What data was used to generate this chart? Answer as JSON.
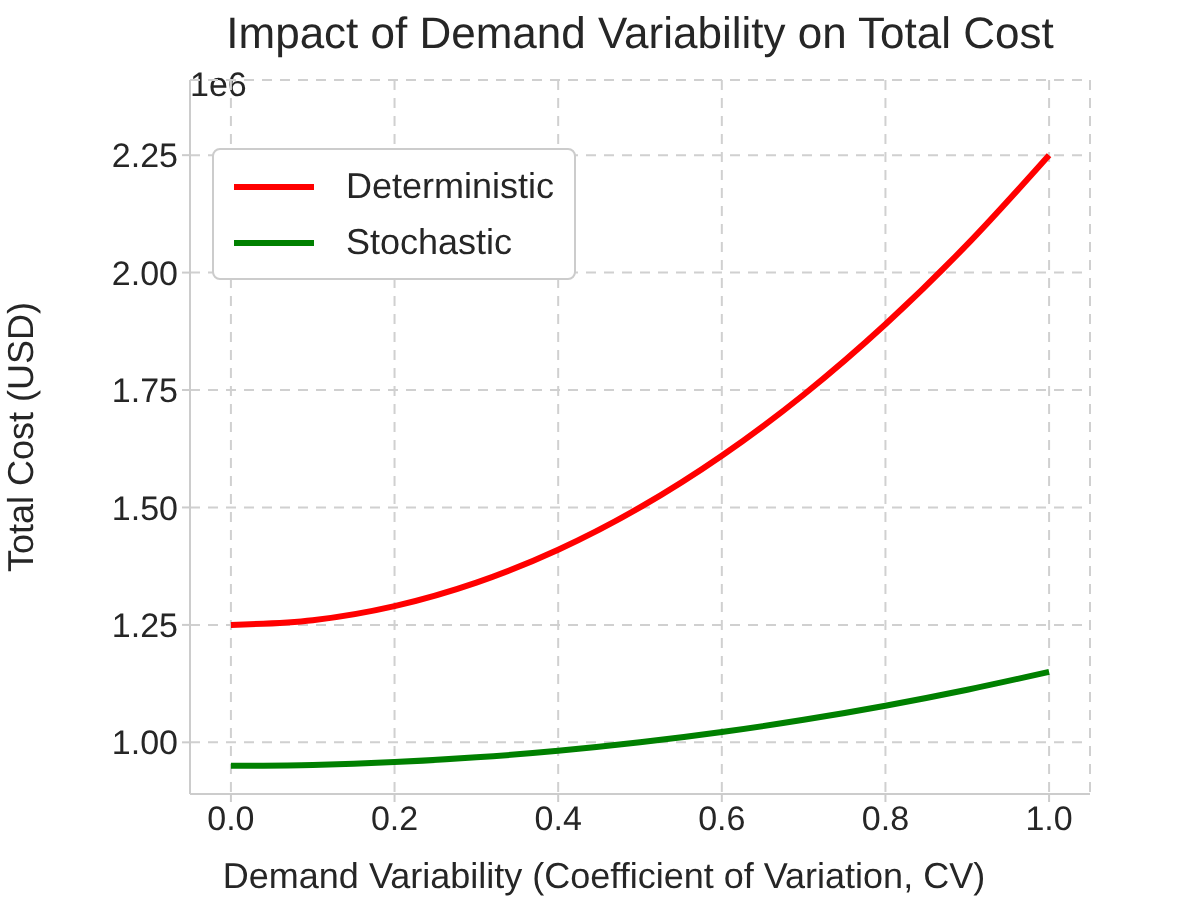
{
  "chart_data": {
    "type": "line",
    "title": "Impact of Demand Variability on Total Cost",
    "xlabel": "Demand Variability (Coefficient of Variation, CV)",
    "ylabel": "Total Cost (USD)",
    "annotations": [
      "1e6"
    ],
    "x": [
      0,
      0.1,
      0.2,
      0.3,
      0.4,
      0.5,
      0.6,
      0.7,
      0.8,
      0.9,
      1.0
    ],
    "series": [
      {
        "name": "Deterministic",
        "color": "#ff0000",
        "values": [
          1.25,
          1.26,
          1.29,
          1.34,
          1.41,
          1.5,
          1.61,
          1.74,
          1.89,
          2.06,
          2.25
        ]
      },
      {
        "name": "Stochastic",
        "color": "#008000",
        "values": [
          0.95,
          0.952,
          0.958,
          0.968,
          0.982,
          1.0,
          1.022,
          1.048,
          1.078,
          1.112,
          1.15
        ]
      }
    ],
    "xlim": [
      -0.05,
      1.05
    ],
    "xticks": [
      {
        "value": 0,
        "label": "0.0"
      },
      {
        "value": 0.2,
        "label": "0.2"
      },
      {
        "value": 0.4,
        "label": "0.4"
      },
      {
        "value": 0.6,
        "label": "0.6"
      },
      {
        "value": 0.8,
        "label": "0.8"
      },
      {
        "value": 1,
        "label": "1.0"
      }
    ],
    "ylim": [
      0.89,
      2.41
    ],
    "yticks": [
      {
        "value": 1,
        "label": "1.00"
      },
      {
        "value": 1.25,
        "label": "1.25"
      },
      {
        "value": 1.5,
        "label": "1.50"
      },
      {
        "value": 1.75,
        "label": "1.75"
      },
      {
        "value": 2,
        "label": "2.00"
      },
      {
        "value": 2.25,
        "label": "2.25"
      }
    ],
    "grid": true,
    "legend": "top left",
    "marker": "none",
    "line_style": "solid"
  }
}
